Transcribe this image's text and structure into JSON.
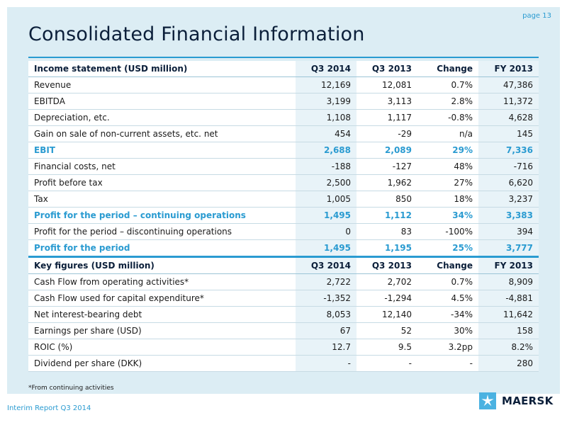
{
  "page_number": "page 13",
  "title": "Consolidated Financial Information",
  "income": {
    "header": [
      "Income statement (USD million)",
      "Q3 2014",
      "Q3 2013",
      "Change",
      "FY 2013"
    ],
    "rows": [
      {
        "cells": [
          "Revenue",
          "12,169",
          "12,081",
          "0.7%",
          "47,386"
        ]
      },
      {
        "cells": [
          "EBITDA",
          "3,199",
          "3,113",
          "2.8%",
          "11,372"
        ]
      },
      {
        "cells": [
          "Depreciation, etc.",
          "1,108",
          "1,117",
          "-0.8%",
          "4,628"
        ]
      },
      {
        "cells": [
          "Gain on sale of non-current assets, etc. net",
          "454",
          "-29",
          "n/a",
          "145"
        ]
      },
      {
        "cells": [
          "EBIT",
          "2,688",
          "2,089",
          "29%",
          "7,336"
        ],
        "highlight": true
      },
      {
        "cells": [
          "Financial costs, net",
          "-188",
          "-127",
          "48%",
          "-716"
        ]
      },
      {
        "cells": [
          "Profit before tax",
          "2,500",
          "1,962",
          "27%",
          "6,620"
        ]
      },
      {
        "cells": [
          "Tax",
          "1,005",
          "850",
          "18%",
          "3,237"
        ]
      },
      {
        "cells": [
          "Profit for the period – continuing operations",
          "1,495",
          "1,112",
          "34%",
          "3,383"
        ],
        "highlight": true
      },
      {
        "cells": [
          "Profit for the period – discontinuing operations",
          "0",
          "83",
          "-100%",
          "394"
        ]
      },
      {
        "cells": [
          "Profit for the period",
          "1,495",
          "1,195",
          "25%",
          "3,777"
        ],
        "highlight": true
      }
    ]
  },
  "key_figures": {
    "header": [
      "Key figures (USD million)",
      "Q3 2014",
      "Q3 2013",
      "Change",
      "FY 2013"
    ],
    "rows": [
      {
        "cells": [
          "Cash Flow from operating activities*",
          "2,722",
          "2,702",
          "0.7%",
          "8,909"
        ]
      },
      {
        "cells": [
          "Cash Flow used for capital expenditure*",
          "-1,352",
          "-1,294",
          "4.5%",
          "-4,881"
        ]
      },
      {
        "cells": [
          "Net interest-bearing debt",
          "8,053",
          "12,140",
          "-34%",
          "11,642"
        ]
      },
      {
        "cells": [
          "Earnings per share (USD)",
          "67",
          "52",
          "30%",
          "158"
        ]
      },
      {
        "cells": [
          "ROIC (%)",
          "12.7",
          "9.5",
          "3.2pp",
          "8.2%"
        ]
      },
      {
        "cells": [
          "Dividend per share (DKK)",
          "-",
          "-",
          "-",
          "280"
        ]
      }
    ]
  },
  "footnote": "*From continuing activities",
  "footer": "Interim Report Q3 2014",
  "logo_text": "MAERSK",
  "colors": {
    "accent": "#2a9bd1",
    "panel": "#dcedf4",
    "logo_box": "#4bb2e1",
    "navy": "#0b1f3a"
  }
}
